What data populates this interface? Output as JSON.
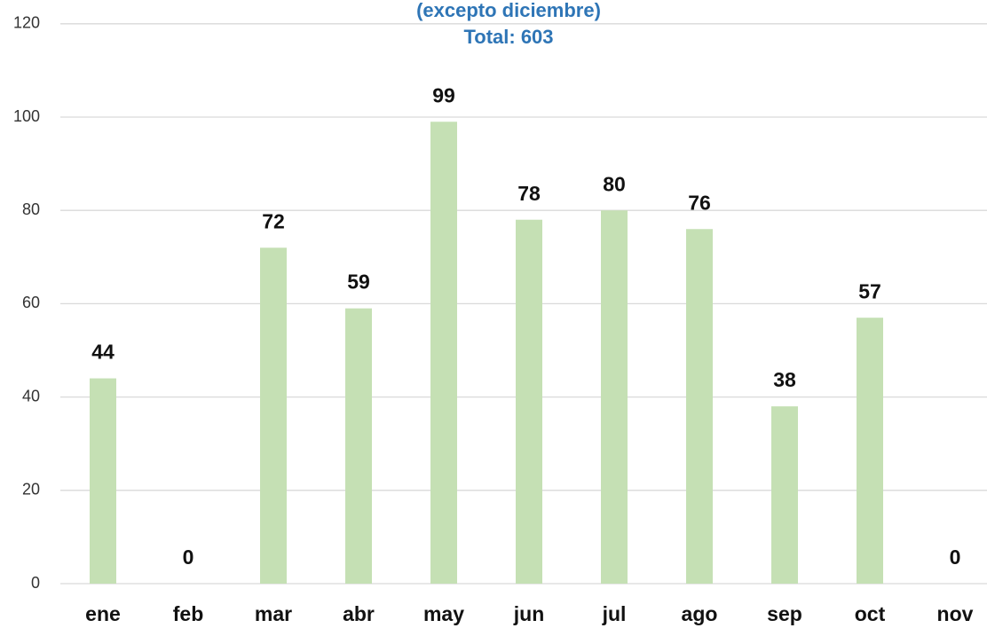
{
  "chart_data": {
    "type": "bar",
    "title": "(excepto diciembre)",
    "subtitle": "Total: 603",
    "categories": [
      "ene",
      "feb",
      "mar",
      "abr",
      "may",
      "jun",
      "jul",
      "ago",
      "sep",
      "oct",
      "nov"
    ],
    "values": [
      44,
      0,
      72,
      59,
      99,
      78,
      80,
      76,
      38,
      57,
      0
    ],
    "color": "#c5e0b4",
    "ylim": [
      0,
      120
    ],
    "yticks": [
      0,
      20,
      40,
      60,
      80,
      100,
      120
    ],
    "grid": true
  }
}
